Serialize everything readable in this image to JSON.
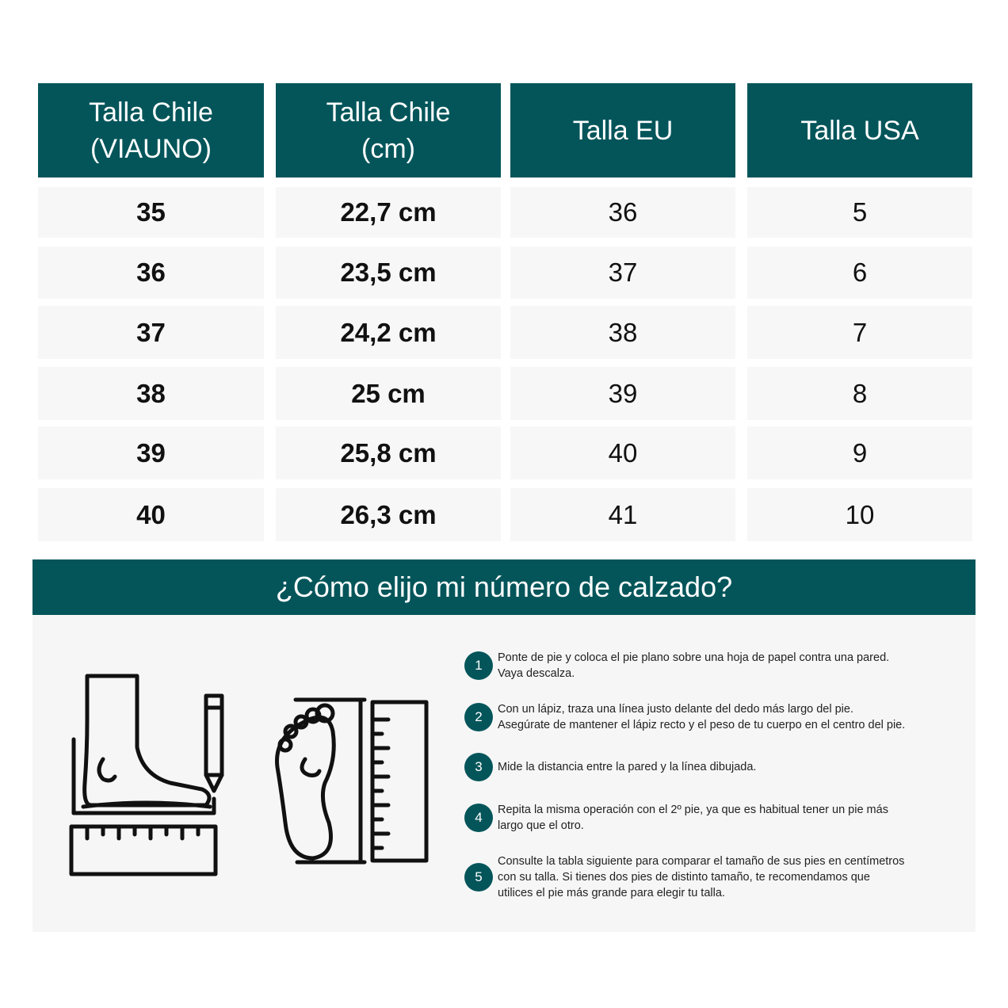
{
  "table": {
    "headers": [
      "Talla Chile\n(VIAUNO)",
      "Talla Chile\n(cm)",
      "Talla EU",
      "Talla USA"
    ],
    "rows": [
      [
        "35",
        "22,7 cm",
        "36",
        "5"
      ],
      [
        "36",
        "23,5 cm",
        "37",
        "6"
      ],
      [
        "37",
        "24,2 cm",
        "38",
        "7"
      ],
      [
        "38",
        "25 cm",
        "39",
        "8"
      ],
      [
        "39",
        "25,8 cm",
        "40",
        "9"
      ],
      [
        "40",
        "26,3 cm",
        "41",
        "10"
      ]
    ]
  },
  "guide": {
    "title": "¿Cómo elijo mi número de calzado?",
    "illustrations": [
      "foot-side-measure-icon",
      "foot-sole-ruler-icon"
    ],
    "steps": [
      {
        "n": "1",
        "text": "Ponte de pie y coloca el pie plano sobre una hoja de papel contra una pared.\nVaya descalza."
      },
      {
        "n": "2",
        "text": "Con un lápiz, traza una línea justo delante del  dedo más largo del pie.\nAsegúrate de mantener  el lápiz recto y el peso de tu cuerpo en el centro del pie."
      },
      {
        "n": "3",
        "text": "Mide la distancia entre la pared y la línea dibujada."
      },
      {
        "n": "4",
        "text": "Repita la misma operación con el 2º pie, ya que es habitual tener un pie más\nlargo que el otro."
      },
      {
        "n": "5",
        "text": "Consulte la tabla siguiente para comparar el tamaño de sus pies en centímetros\ncon su talla. Si tienes dos pies de distinto tamaño, te recomendamos que\nutilices el pie más grande para elegir tu talla."
      }
    ]
  },
  "colors": {
    "accent": "#03555a",
    "cell": "#f7f7f7",
    "panel": "#f6f6f6"
  }
}
